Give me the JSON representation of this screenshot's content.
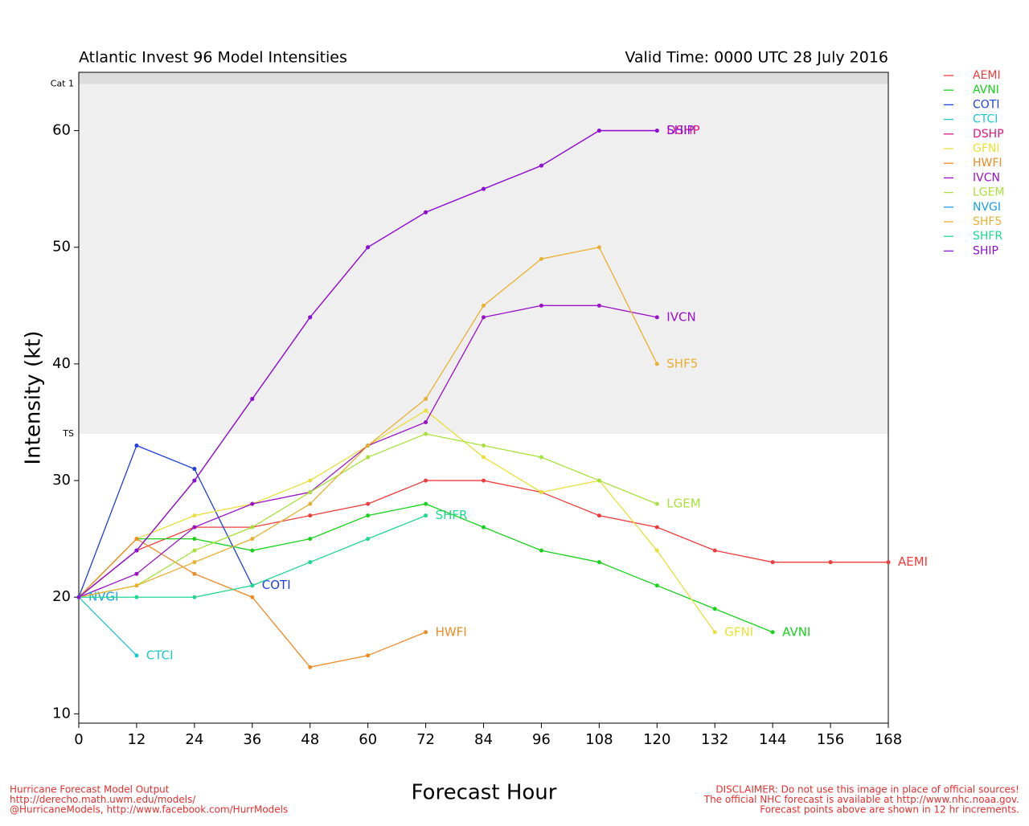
{
  "chart_data": {
    "type": "line",
    "title": "Atlantic Invest 96 Model Intensities",
    "subtitle": "Valid Time: 0000 UTC 28 July 2016",
    "x_label": "Forecast Hour",
    "y_label": "Intensity (kt)",
    "x": [
      0,
      12,
      24,
      36,
      48,
      60,
      72,
      84,
      96,
      108,
      120,
      132,
      144,
      156,
      168
    ],
    "xlim": [
      0,
      168
    ],
    "xticks": [
      0,
      12,
      24,
      36,
      48,
      60,
      72,
      84,
      96,
      108,
      120,
      132,
      144,
      156,
      168
    ],
    "ylim": [
      9.2,
      65
    ],
    "yticks": [
      10,
      20,
      30,
      40,
      50,
      60
    ],
    "bands": [
      {
        "label": "TS",
        "value": 34
      },
      {
        "label": "Cat 1",
        "value": 64
      }
    ],
    "series": [
      {
        "name": "AEMI",
        "color": "#f03c3c",
        "values": [
          20,
          24,
          26,
          26,
          27,
          28,
          30,
          30,
          29,
          27,
          26,
          24,
          23,
          23,
          23
        ]
      },
      {
        "name": "AVNI",
        "color": "#17d21a",
        "values": [
          20,
          25,
          25,
          24,
          25,
          27,
          28,
          26,
          24,
          23,
          21,
          19,
          17,
          null,
          null
        ]
      },
      {
        "name": "COTI",
        "color": "#1f3fdc",
        "values": [
          20,
          33,
          31,
          21,
          null,
          null,
          null,
          null,
          null,
          null,
          null,
          null,
          null,
          null,
          null
        ]
      },
      {
        "name": "CTCI",
        "color": "#1ec8c8",
        "values": [
          20,
          15,
          null,
          null,
          null,
          null,
          null,
          null,
          null,
          null,
          null,
          null,
          null,
          null,
          null
        ]
      },
      {
        "name": "DSHP",
        "color": "#e0177f",
        "values": [
          20,
          24,
          30,
          37,
          44,
          50,
          53,
          55,
          57,
          60,
          60,
          null,
          null,
          null,
          null
        ]
      },
      {
        "name": "GFNI",
        "color": "#e8e03a",
        "values": [
          20,
          25,
          27,
          28,
          30,
          33,
          36,
          32,
          29,
          30,
          24,
          17,
          null,
          null,
          null
        ]
      },
      {
        "name": "HWFI",
        "color": "#ef8a25",
        "values": [
          20,
          25,
          22,
          20,
          14,
          15,
          17,
          null,
          null,
          null,
          null,
          null,
          null,
          null,
          null
        ]
      },
      {
        "name": "IVCN",
        "color": "#9b10c8",
        "values": [
          20,
          22,
          26,
          28,
          29,
          33,
          35,
          44,
          45,
          45,
          44,
          null,
          null,
          null,
          null
        ]
      },
      {
        "name": "LGEM",
        "color": "#a8e03c",
        "values": [
          20,
          21,
          24,
          26,
          29,
          32,
          34,
          33,
          32,
          30,
          28,
          null,
          null,
          null,
          null
        ]
      },
      {
        "name": "NVGI",
        "color": "#1a9ee8",
        "values": [
          20,
          null,
          null,
          null,
          null,
          null,
          null,
          null,
          null,
          null,
          null,
          null,
          null,
          null,
          null
        ]
      },
      {
        "name": "SHF5",
        "color": "#e8b030",
        "values": [
          20,
          21,
          23,
          25,
          28,
          33,
          37,
          45,
          49,
          50,
          40,
          null,
          null,
          null,
          null
        ]
      },
      {
        "name": "SHFR",
        "color": "#1ed890",
        "values": [
          20,
          20,
          20,
          21,
          23,
          25,
          27,
          null,
          null,
          null,
          null,
          null,
          null,
          null,
          null
        ]
      },
      {
        "name": "SHIP",
        "color": "#8a10d8",
        "values": [
          20,
          24,
          30,
          37,
          44,
          50,
          53,
          55,
          57,
          60,
          60,
          null,
          null,
          null,
          null
        ]
      }
    ],
    "footer_left": [
      "Hurricane Forecast Model Output",
      "http://derecho.math.uwm.edu/models/",
      "@HurricaneModels, http://www.facebook.com/HurrModels"
    ],
    "footer_right": [
      "DISCLAIMER: Do not use this image in place of official sources!",
      "The official NHC forecast is available at http://www.nhc.noaa.gov.",
      "Forecast points above are shown in 12 hr increments."
    ]
  }
}
